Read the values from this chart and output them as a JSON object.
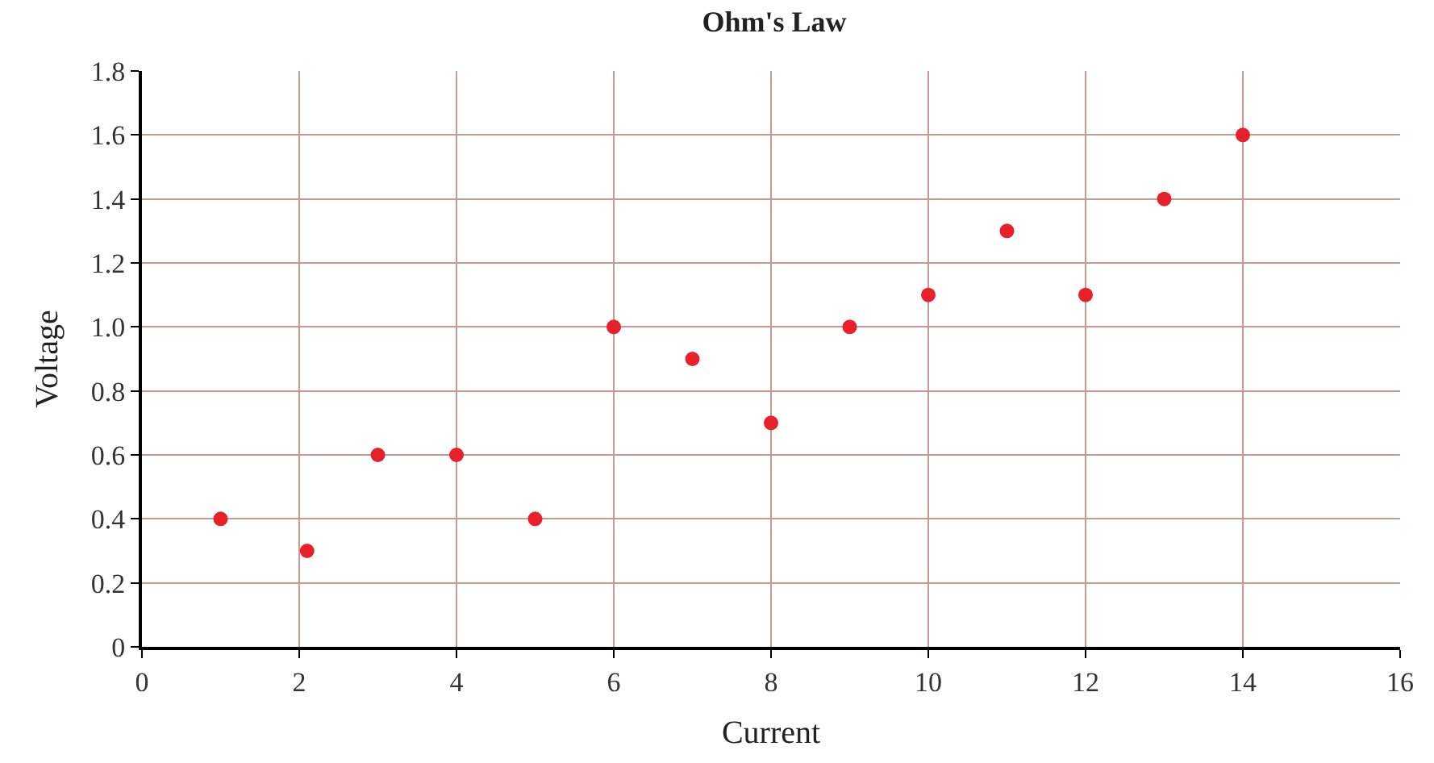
{
  "chart_data": {
    "type": "scatter",
    "title": "Ohm's Law",
    "xlabel": "Current",
    "ylabel": "Voltage",
    "x": [
      1,
      2.1,
      3,
      4,
      5,
      6,
      7,
      8,
      9,
      10,
      11,
      12,
      13,
      14
    ],
    "series": [
      {
        "color": "#e8202a",
        "values": [
          0.4,
          0.3,
          0.6,
          0.6,
          0.4,
          1.0,
          0.9,
          0.7,
          1.0,
          1.1,
          1.3,
          1.1,
          1.4,
          1.6
        ]
      }
    ],
    "xlim": [
      0,
      16
    ],
    "xticks": [
      0,
      2,
      4,
      6,
      8,
      10,
      12,
      14,
      16
    ],
    "ylim": [
      0,
      1.8
    ],
    "yticks": [
      0,
      0.2,
      0.4,
      0.6,
      0.8,
      {
        "value": 1,
        "label": "1.0"
      },
      1.2,
      1.4,
      1.6,
      1.8
    ],
    "grid": true,
    "marker": "circle"
  }
}
